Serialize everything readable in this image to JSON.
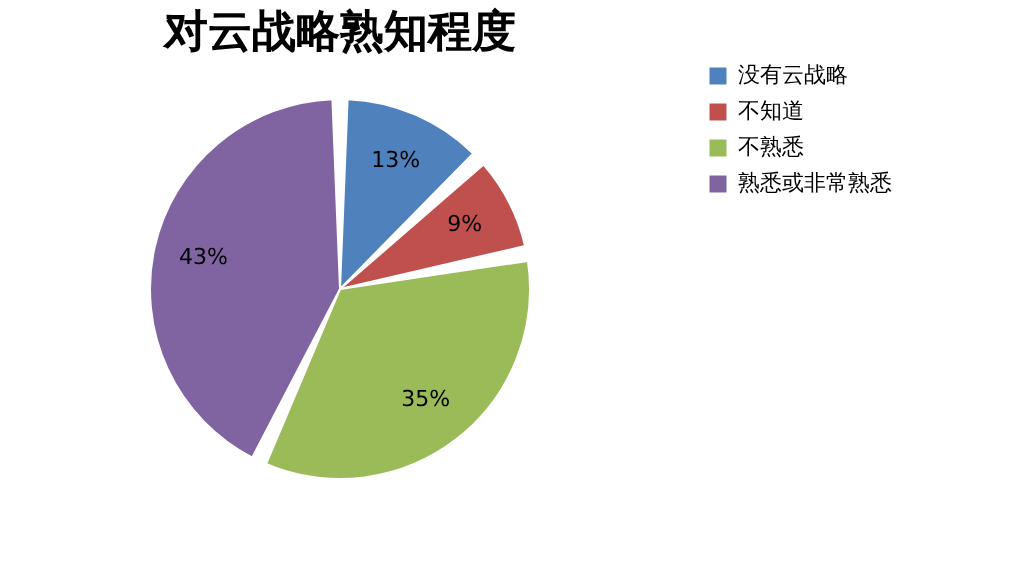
{
  "chart_data": {
    "type": "pie",
    "title": "对云战略熟知程度",
    "categories": [
      "没有云战略",
      "不知道",
      "不熟悉",
      "熟悉或非常熟悉"
    ],
    "values": [
      13,
      9,
      35,
      43
    ],
    "colors": [
      "#4f81bd",
      "#c0504d",
      "#9bbb59",
      "#8064a2"
    ],
    "value_labels": [
      "13%",
      "9%",
      "35%",
      "43%"
    ],
    "legend": "right"
  }
}
